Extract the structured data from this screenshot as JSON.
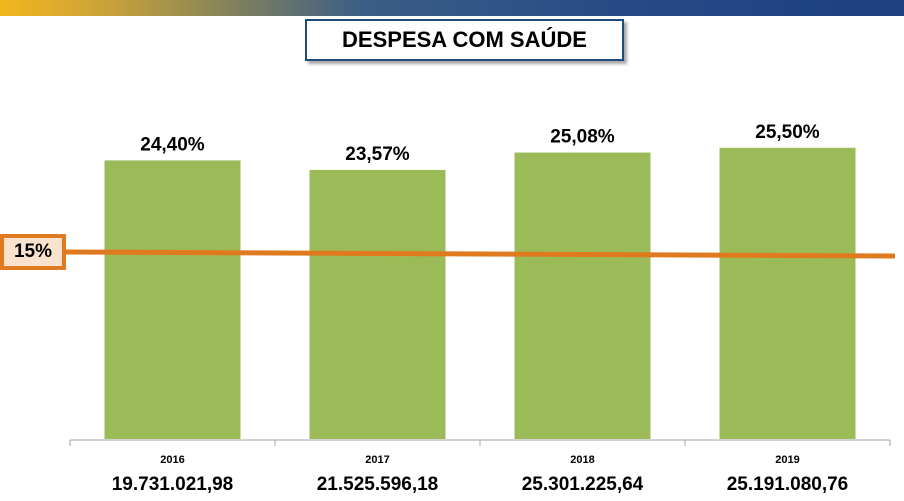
{
  "chart_data": {
    "type": "bar",
    "title": "DESPESA COM SAÚDE",
    "categories": [
      "2016",
      "2017",
      "2018",
      "2019"
    ],
    "values": [
      24.4,
      23.57,
      25.08,
      25.5
    ],
    "value_labels": [
      "24,40%",
      "23,57%",
      "25,08%",
      "25,50%"
    ],
    "amounts": [
      "19.731.021,98",
      "21.525.596,18",
      "25.301.225,64",
      "25.191.080,76"
    ],
    "threshold": {
      "value": 15,
      "label": "15%"
    },
    "ylim": [
      0,
      29
    ],
    "colors": {
      "bar": "#9bbb59",
      "bar_border": "#ffffff",
      "threshold_line": "#e07a1f"
    },
    "legend": "none",
    "grid": false
  }
}
